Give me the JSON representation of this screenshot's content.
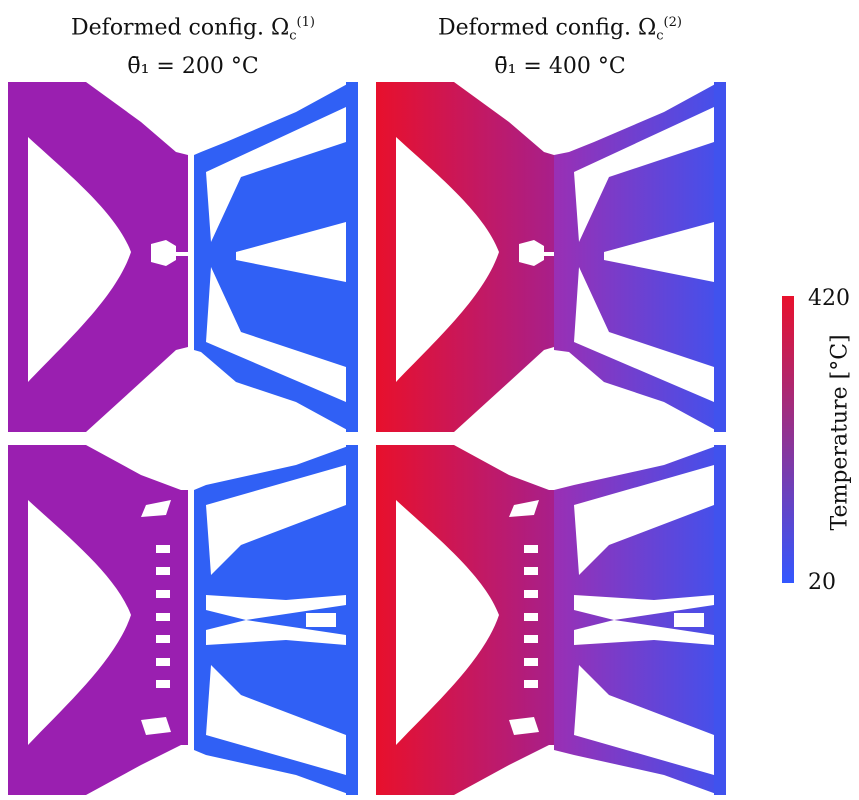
{
  "columns": [
    {
      "title": "Deformed config. Ω",
      "sub": "c",
      "sup": "(1)",
      "param": "θ̄₁ = 200 °C"
    },
    {
      "title": "Deformed config. Ω",
      "sub": "c",
      "sup": "(2)",
      "param": "θ̄₁ = 400 °C"
    }
  ],
  "colorbar": {
    "label": "Temperature [°C]",
    "max": "420",
    "min": "20",
    "color_max": "#e8112d",
    "color_min": "#3357ff"
  },
  "panel_colors": {
    "left_200": "#9a1fb0",
    "right_200": "#3060f5",
    "left_400_start": "#e8102c",
    "left_400_end": "#a81f8a",
    "right_400_start": "#9a2fb4",
    "right_400_end": "#4052ee"
  }
}
